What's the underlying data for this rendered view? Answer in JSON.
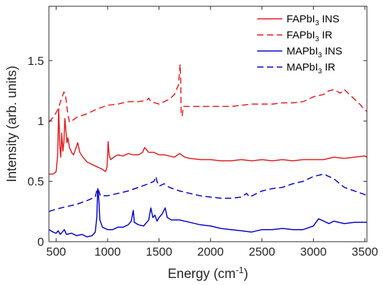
{
  "chart_data": {
    "type": "line",
    "xlabel": "Energy (cm",
    "xlabel_sup": "-1",
    "xlabel_end": ")",
    "ylabel": "Intensity (arb. units)",
    "xlim": [
      430,
      3520
    ],
    "ylim": [
      0,
      1.95
    ],
    "x_ticks": [
      500,
      1000,
      1500,
      2000,
      2500,
      3000,
      3500
    ],
    "x_tick_labels": [
      "500",
      "1000",
      "1500",
      "2000",
      "2500",
      "3000",
      "3500"
    ],
    "y_ticks": [
      0,
      0.5,
      1,
      1.5
    ],
    "y_tick_labels": [
      "0",
      "0.5",
      "1",
      "1.5"
    ],
    "grid": false,
    "legend_position": "top-right",
    "series": [
      {
        "name": "FAPbI3 INS",
        "legend_base": "FAPbI",
        "legend_sub": "3",
        "legend_tail": " INS",
        "color": "#e41a1c",
        "style": "solid",
        "points": [
          [
            430,
            0.56
          ],
          [
            470,
            0.56
          ],
          [
            500,
            0.58
          ],
          [
            515,
            0.72
          ],
          [
            525,
            1.1
          ],
          [
            535,
            0.8
          ],
          [
            545,
            0.7
          ],
          [
            555,
            0.9
          ],
          [
            565,
            0.75
          ],
          [
            575,
            0.82
          ],
          [
            585,
            1.02
          ],
          [
            595,
            0.92
          ],
          [
            605,
            0.82
          ],
          [
            615,
            0.86
          ],
          [
            630,
            0.78
          ],
          [
            650,
            0.74
          ],
          [
            670,
            0.72
          ],
          [
            690,
            0.77
          ],
          [
            710,
            0.82
          ],
          [
            730,
            0.74
          ],
          [
            760,
            0.7
          ],
          [
            800,
            0.66
          ],
          [
            850,
            0.64
          ],
          [
            900,
            0.62
          ],
          [
            950,
            0.6
          ],
          [
            980,
            0.58
          ],
          [
            995,
            0.62
          ],
          [
            1005,
            0.83
          ],
          [
            1015,
            0.72
          ],
          [
            1030,
            0.68
          ],
          [
            1060,
            0.7
          ],
          [
            1100,
            0.72
          ],
          [
            1150,
            0.71
          ],
          [
            1200,
            0.73
          ],
          [
            1250,
            0.72
          ],
          [
            1300,
            0.72
          ],
          [
            1340,
            0.74
          ],
          [
            1360,
            0.78
          ],
          [
            1380,
            0.76
          ],
          [
            1400,
            0.74
          ],
          [
            1450,
            0.74
          ],
          [
            1500,
            0.72
          ],
          [
            1550,
            0.72
          ],
          [
            1600,
            0.71
          ],
          [
            1650,
            0.7
          ],
          [
            1700,
            0.73
          ],
          [
            1750,
            0.7
          ],
          [
            1800,
            0.69
          ],
          [
            1900,
            0.68
          ],
          [
            2000,
            0.68
          ],
          [
            2100,
            0.67
          ],
          [
            2200,
            0.67
          ],
          [
            2300,
            0.68
          ],
          [
            2400,
            0.67
          ],
          [
            2500,
            0.68
          ],
          [
            2600,
            0.67
          ],
          [
            2700,
            0.68
          ],
          [
            2800,
            0.67
          ],
          [
            2900,
            0.68
          ],
          [
            3000,
            0.68
          ],
          [
            3100,
            0.68
          ],
          [
            3200,
            0.7
          ],
          [
            3300,
            0.69
          ],
          [
            3400,
            0.7
          ],
          [
            3500,
            0.71
          ],
          [
            3520,
            0.7
          ]
        ]
      },
      {
        "name": "FAPbI3 IR",
        "legend_base": "FAPbI",
        "legend_sub": "3",
        "legend_tail": " IR",
        "color": "#e41a1c",
        "style": "dashed",
        "points": [
          [
            430,
            0.99
          ],
          [
            480,
            1.04
          ],
          [
            520,
            1.1
          ],
          [
            550,
            1.18
          ],
          [
            575,
            1.24
          ],
          [
            590,
            1.22
          ],
          [
            610,
            1.08
          ],
          [
            630,
            0.99
          ],
          [
            650,
            1.0
          ],
          [
            700,
            1.03
          ],
          [
            800,
            1.06
          ],
          [
            900,
            1.1
          ],
          [
            1000,
            1.13
          ],
          [
            1100,
            1.14
          ],
          [
            1200,
            1.16
          ],
          [
            1300,
            1.16
          ],
          [
            1380,
            1.17
          ],
          [
            1400,
            1.19
          ],
          [
            1420,
            1.16
          ],
          [
            1500,
            1.14
          ],
          [
            1600,
            1.18
          ],
          [
            1650,
            1.22
          ],
          [
            1690,
            1.3
          ],
          [
            1700,
            1.42
          ],
          [
            1705,
            1.47
          ],
          [
            1710,
            1.35
          ],
          [
            1715,
            1.07
          ],
          [
            1725,
            1.04
          ],
          [
            1735,
            1.12
          ],
          [
            1800,
            1.12
          ],
          [
            1900,
            1.12
          ],
          [
            2000,
            1.12
          ],
          [
            2100,
            1.12
          ],
          [
            2200,
            1.12
          ],
          [
            2300,
            1.13
          ],
          [
            2400,
            1.14
          ],
          [
            2500,
            1.14
          ],
          [
            2600,
            1.14
          ],
          [
            2700,
            1.15
          ],
          [
            2800,
            1.15
          ],
          [
            2900,
            1.16
          ],
          [
            3000,
            1.2
          ],
          [
            3100,
            1.22
          ],
          [
            3150,
            1.25
          ],
          [
            3200,
            1.26
          ],
          [
            3260,
            1.23
          ],
          [
            3300,
            1.26
          ],
          [
            3350,
            1.22
          ],
          [
            3400,
            1.18
          ],
          [
            3450,
            1.14
          ],
          [
            3500,
            1.09
          ],
          [
            3520,
            1.08
          ]
        ]
      },
      {
        "name": "MAPbI3 INS",
        "legend_base": "MAPbI",
        "legend_sub": "3",
        "legend_tail": " INS",
        "color": "#0000cd",
        "style": "solid",
        "points": [
          [
            430,
            0.1
          ],
          [
            470,
            0.08
          ],
          [
            500,
            0.07
          ],
          [
            520,
            0.09
          ],
          [
            540,
            0.06
          ],
          [
            560,
            0.08
          ],
          [
            580,
            0.1
          ],
          [
            600,
            0.06
          ],
          [
            650,
            0.07
          ],
          [
            700,
            0.05
          ],
          [
            750,
            0.06
          ],
          [
            800,
            0.04
          ],
          [
            850,
            0.05
          ],
          [
            880,
            0.08
          ],
          [
            895,
            0.2
          ],
          [
            905,
            0.44
          ],
          [
            915,
            0.35
          ],
          [
            925,
            0.18
          ],
          [
            950,
            0.12
          ],
          [
            1000,
            0.1
          ],
          [
            1050,
            0.1
          ],
          [
            1100,
            0.12
          ],
          [
            1150,
            0.12
          ],
          [
            1200,
            0.14
          ],
          [
            1230,
            0.17
          ],
          [
            1250,
            0.26
          ],
          [
            1260,
            0.16
          ],
          [
            1300,
            0.14
          ],
          [
            1350,
            0.13
          ],
          [
            1400,
            0.18
          ],
          [
            1420,
            0.28
          ],
          [
            1440,
            0.2
          ],
          [
            1460,
            0.22
          ],
          [
            1480,
            0.17
          ],
          [
            1500,
            0.2
          ],
          [
            1530,
            0.23
          ],
          [
            1560,
            0.28
          ],
          [
            1580,
            0.2
          ],
          [
            1620,
            0.18
          ],
          [
            1700,
            0.18
          ],
          [
            1800,
            0.16
          ],
          [
            1900,
            0.14
          ],
          [
            2000,
            0.13
          ],
          [
            2100,
            0.11
          ],
          [
            2200,
            0.1
          ],
          [
            2300,
            0.09
          ],
          [
            2400,
            0.08
          ],
          [
            2500,
            0.1
          ],
          [
            2600,
            0.1
          ],
          [
            2700,
            0.11
          ],
          [
            2800,
            0.1
          ],
          [
            2900,
            0.1
          ],
          [
            3000,
            0.13
          ],
          [
            3050,
            0.19
          ],
          [
            3100,
            0.17
          ],
          [
            3150,
            0.15
          ],
          [
            3200,
            0.17
          ],
          [
            3300,
            0.15
          ],
          [
            3400,
            0.16
          ],
          [
            3500,
            0.16
          ],
          [
            3520,
            0.16
          ]
        ]
      },
      {
        "name": "MAPbI3 IR",
        "legend_base": "MAPbI",
        "legend_sub": "3",
        "legend_tail": " IR",
        "color": "#0000cd",
        "style": "dashed",
        "points": [
          [
            430,
            0.25
          ],
          [
            500,
            0.27
          ],
          [
            600,
            0.29
          ],
          [
            700,
            0.31
          ],
          [
            800,
            0.34
          ],
          [
            880,
            0.37
          ],
          [
            900,
            0.44
          ],
          [
            915,
            0.42
          ],
          [
            930,
            0.38
          ],
          [
            1000,
            0.38
          ],
          [
            1100,
            0.4
          ],
          [
            1200,
            0.42
          ],
          [
            1300,
            0.45
          ],
          [
            1400,
            0.48
          ],
          [
            1450,
            0.5
          ],
          [
            1470,
            0.54
          ],
          [
            1480,
            0.5
          ],
          [
            1500,
            0.46
          ],
          [
            1550,
            0.48
          ],
          [
            1600,
            0.45
          ],
          [
            1700,
            0.42
          ],
          [
            1800,
            0.4
          ],
          [
            1900,
            0.38
          ],
          [
            2000,
            0.37
          ],
          [
            2100,
            0.36
          ],
          [
            2200,
            0.36
          ],
          [
            2300,
            0.37
          ],
          [
            2350,
            0.4
          ],
          [
            2380,
            0.37
          ],
          [
            2450,
            0.4
          ],
          [
            2500,
            0.42
          ],
          [
            2600,
            0.44
          ],
          [
            2700,
            0.45
          ],
          [
            2800,
            0.48
          ],
          [
            2900,
            0.5
          ],
          [
            3000,
            0.54
          ],
          [
            3100,
            0.56
          ],
          [
            3200,
            0.52
          ],
          [
            3300,
            0.45
          ],
          [
            3400,
            0.42
          ],
          [
            3500,
            0.39
          ],
          [
            3520,
            0.38
          ]
        ]
      }
    ]
  }
}
